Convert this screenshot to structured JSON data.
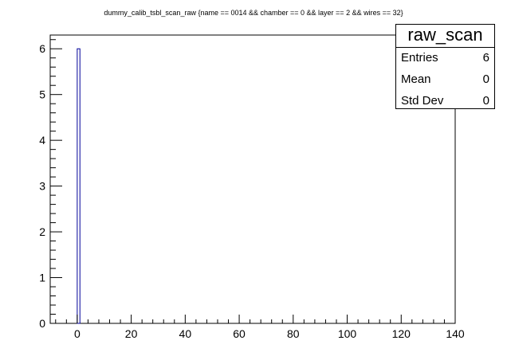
{
  "chart_data": {
    "type": "bar",
    "title": "dummy_calib_tsbl_scan_raw  {name == 0014 && chamber == 0 && layer == 2 && wires == 32}",
    "xlabel": "",
    "ylabel": "",
    "xlim": [
      -10,
      140
    ],
    "ylim": [
      0,
      6.3
    ],
    "x_ticks": [
      0,
      20,
      40,
      60,
      80,
      100,
      120,
      140
    ],
    "y_ticks": [
      0,
      1,
      2,
      3,
      4,
      5,
      6
    ],
    "bins": [
      {
        "x0": 0,
        "x1": 1,
        "value": 6
      }
    ],
    "bar_color": "#000099",
    "grid": false
  },
  "stats": {
    "name": "raw_scan",
    "rows": [
      {
        "label": "Entries",
        "value": "6"
      },
      {
        "label": "Mean",
        "value": "0"
      },
      {
        "label": "Std Dev",
        "value": "0"
      }
    ]
  }
}
